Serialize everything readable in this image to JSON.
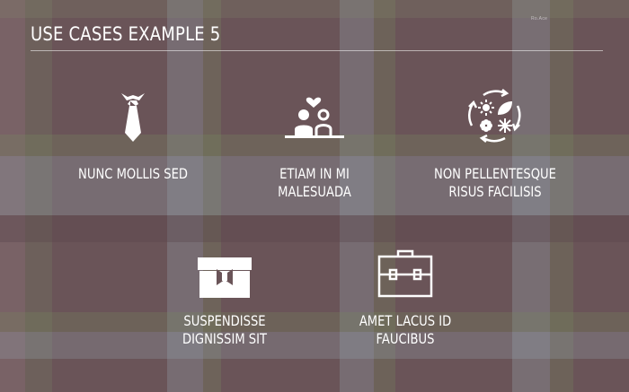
{
  "slide": {
    "title": "USE CASES EXAMPLE 5",
    "brand_mark": "Ro.Ace"
  },
  "use_cases": [
    {
      "label": "NUNC MOLLIS SED",
      "icon": "necktie-icon"
    },
    {
      "label": "ETIAM IN MI\nMALESUADA",
      "icon": "couple-love-icon"
    },
    {
      "label": "NON PELLENTESQUE\nRISUS FACILISIS",
      "icon": "seasons-cycle-icon"
    },
    {
      "label": "SUSPENDISSE\nDIGNISSIM SIT",
      "icon": "gift-box-icon"
    },
    {
      "label": "AMET LACUS ID\nFAUCIBUS",
      "icon": "briefcase-icon"
    }
  ],
  "colors": {
    "background": "#6a5458",
    "text": "#ffffff"
  }
}
